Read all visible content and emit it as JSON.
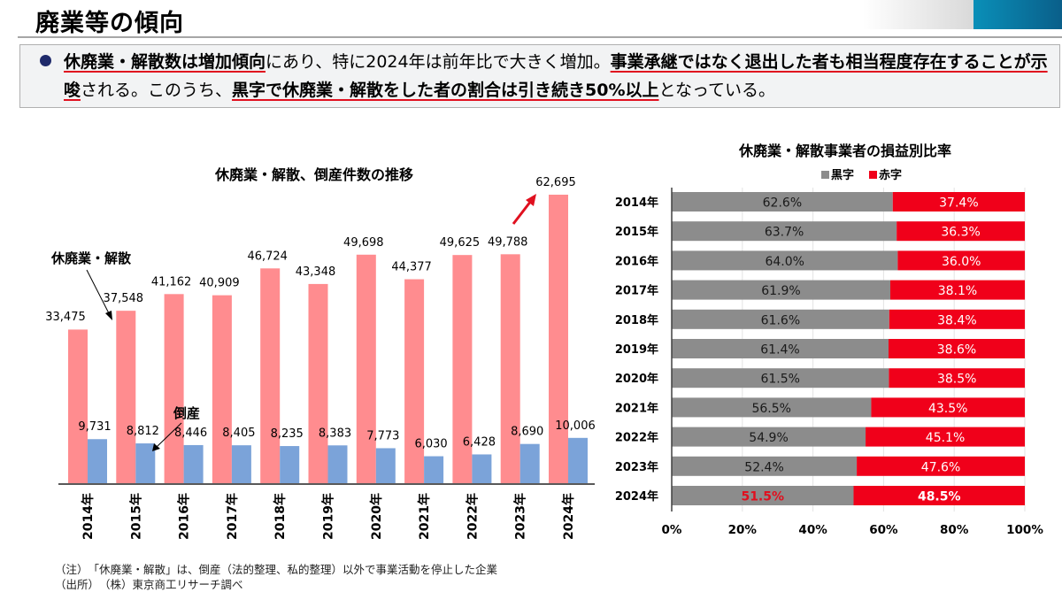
{
  "header": {
    "title": "廃業等の傾向"
  },
  "summary": {
    "segments": [
      {
        "text": "休廃業・解散数は増加傾向",
        "emphasis": true
      },
      {
        "text": "にあり、特に2024年は前年比で大きく増加。",
        "emphasis": false
      },
      {
        "text": "事業承継ではなく退出した者も相当程度存在することが示唆",
        "emphasis": true
      },
      {
        "text": "される。このうち、",
        "emphasis": false
      },
      {
        "text": "黒字で休廃業・解散をした者の割合は引き続き50%以上",
        "emphasis": true
      },
      {
        "text": "となっている。",
        "emphasis": false
      }
    ]
  },
  "colors": {
    "closure_bar": "#ff8c8f",
    "bankruptcy_bar": "#7ba3d9",
    "profit_bar": "#8c8c8c",
    "loss_bar": "#f0001a",
    "highlight_red": "#e0101f",
    "arrow_red": "#e0101f"
  },
  "chart_data": [
    {
      "type": "bar",
      "title": "休廃業・解散、倒産件数の推移",
      "categories": [
        "2014年",
        "2015年",
        "2016年",
        "2017年",
        "2018年",
        "2019年",
        "2020年",
        "2021年",
        "2022年",
        "2023年",
        "2024年"
      ],
      "series": [
        {
          "name": "休廃業・解散",
          "values": [
            33475,
            37548,
            41162,
            40909,
            46724,
            43348,
            49698,
            44377,
            49625,
            49788,
            62695
          ],
          "labels": [
            "33,475",
            "37,548",
            "41,162",
            "40,909",
            "46,724",
            "43,348",
            "49,698",
            "44,377",
            "49,625",
            "49,788",
            "62,695"
          ]
        },
        {
          "name": "倒産",
          "values": [
            9731,
            8812,
            8446,
            8405,
            8235,
            8383,
            7773,
            6030,
            6428,
            8690,
            10006
          ],
          "labels": [
            "9,731",
            "8,812",
            "8,446",
            "8,405",
            "8,235",
            "8,383",
            "7,773",
            "6,030",
            "6,428",
            "8,690",
            "10,006"
          ]
        }
      ],
      "annotations": [
        "休廃業・解散",
        "倒産"
      ],
      "ylim": [
        0,
        65000
      ],
      "xlabel": "",
      "ylabel": "",
      "grid": false
    },
    {
      "type": "bar",
      "orientation": "horizontal-stacked-100",
      "title": "休廃業・解散事業者の損益別比率",
      "legend": [
        "黒字",
        "赤字"
      ],
      "legend_position": "top",
      "categories": [
        "2014年",
        "2015年",
        "2016年",
        "2017年",
        "2018年",
        "2019年",
        "2020年",
        "2021年",
        "2022年",
        "2023年",
        "2024年"
      ],
      "series": [
        {
          "name": "黒字",
          "values": [
            62.6,
            63.7,
            64.0,
            61.9,
            61.6,
            61.4,
            61.5,
            56.5,
            54.9,
            52.4,
            51.5
          ],
          "labels": [
            "62.6%",
            "63.7%",
            "64.0%",
            "61.9%",
            "61.6%",
            "61.4%",
            "61.5%",
            "56.5%",
            "54.9%",
            "52.4%",
            "51.5%"
          ]
        },
        {
          "name": "赤字",
          "values": [
            37.4,
            36.3,
            36.0,
            38.1,
            38.4,
            38.6,
            38.5,
            43.5,
            45.1,
            47.6,
            48.5
          ],
          "labels": [
            "37.4%",
            "36.3%",
            "36.0%",
            "38.1%",
            "38.4%",
            "38.6%",
            "38.5%",
            "43.5%",
            "45.1%",
            "47.6%",
            "48.5%"
          ]
        }
      ],
      "xticks": [
        "0%",
        "20%",
        "40%",
        "60%",
        "80%",
        "100%"
      ],
      "xlim": [
        0,
        100
      ],
      "grid": true
    }
  ],
  "notes": {
    "note": "（注）　「休廃業・解散」は、倒産（法的整理、私的整理）以外で事業活動を停止した企業",
    "source": "（出所）　（株）東京商工リサーチ調べ"
  }
}
